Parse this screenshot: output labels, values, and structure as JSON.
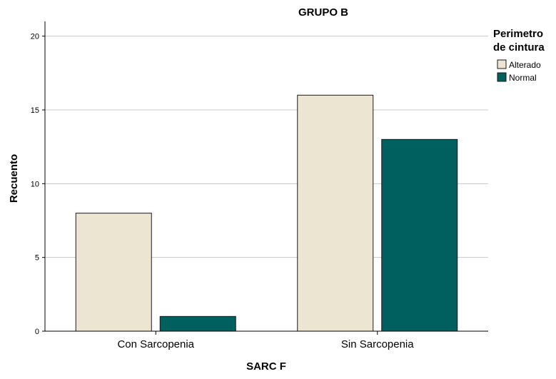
{
  "chart_data": {
    "type": "bar",
    "title": "GRUPO B",
    "xlabel": "SARC F",
    "ylabel": "Recuento",
    "categories": [
      "Con Sarcopenia",
      "Sin Sarcopenia"
    ],
    "series": [
      {
        "name": "Alterado",
        "values": [
          8,
          16
        ],
        "color": "#ebe5d1"
      },
      {
        "name": "Normal",
        "values": [
          1,
          13
        ],
        "color": "#005f5f"
      }
    ],
    "ylim": [
      0,
      21
    ],
    "yticks": [
      0,
      5,
      10,
      15,
      20
    ],
    "grid": true,
    "legend": {
      "title": [
        "Perimetro",
        "de cintura"
      ],
      "placement": "top-right"
    }
  }
}
